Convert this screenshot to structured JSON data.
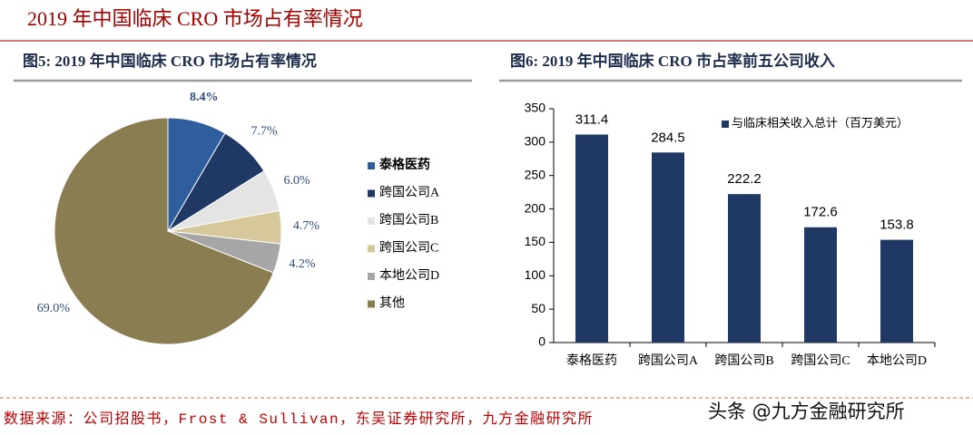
{
  "title": "2019 年中国临床 CRO 市场占有率情况",
  "source": "数据来源：公司招股书，Frost & Sullivan，东吴证券研究所，九方金融研究所",
  "watermark": "头条 @九方金融研究所",
  "chart_data": [
    {
      "type": "pie",
      "title": "图5: 2019 年中国临床 CRO 市场占有率情况",
      "categories": [
        "泰格医药",
        "跨国公司A",
        "跨国公司B",
        "跨国公司C",
        "本地公司D",
        "其他"
      ],
      "values": [
        8.4,
        7.7,
        6.0,
        4.7,
        4.2,
        69.0
      ],
      "value_labels": [
        "8.4%",
        "7.7%",
        "6.0%",
        "4.7%",
        "4.2%",
        "69.0%"
      ],
      "colors": [
        "#2e5e9e",
        "#1f3864",
        "#e4e4e4",
        "#d6c89a",
        "#a6a6a6",
        "#8b7d52"
      ],
      "legend": "right"
    },
    {
      "type": "bar",
      "title": "图6: 2019 年中国临床 CRO 市占率前五公司收入",
      "categories": [
        "泰格医药",
        "跨国公司A",
        "跨国公司B",
        "跨国公司C",
        "本地公司D"
      ],
      "series": [
        {
          "name": "与临床相关收入总计（百万美元）",
          "color": "#1f3864",
          "values": [
            311.4,
            284.5,
            222.2,
            172.6,
            153.8
          ]
        }
      ],
      "ylim": [
        0,
        350
      ],
      "yticks": [
        0,
        50,
        100,
        150,
        200,
        250,
        300,
        350
      ],
      "grid": false,
      "legend": "top-right"
    }
  ]
}
